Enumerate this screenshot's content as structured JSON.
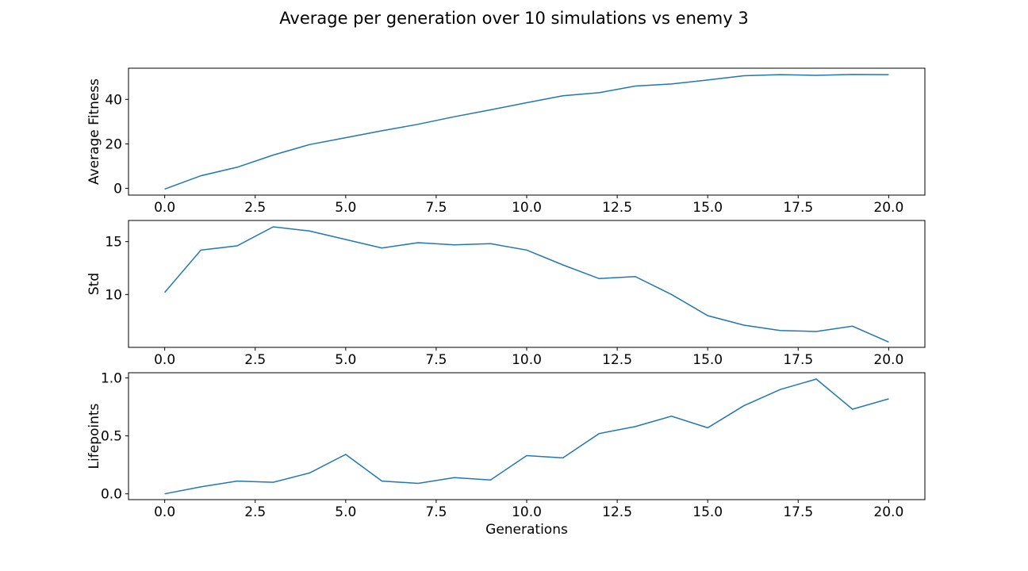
{
  "chart_data": [
    {
      "type": "line",
      "title": "Average per generation over 10 simulations vs enemy 3",
      "xlabel": "",
      "ylabel": "Average Fitness",
      "xlim": [
        -1.0,
        21.0
      ],
      "ylim": [
        -3,
        54
      ],
      "xticks": [
        "0.0",
        "2.5",
        "5.0",
        "7.5",
        "10.0",
        "12.5",
        "15.0",
        "17.5",
        "20.0"
      ],
      "yticks": [
        "0",
        "20",
        "40"
      ],
      "color": "#1f77b4",
      "x": [
        0,
        1,
        2,
        3,
        4,
        5,
        6,
        7,
        8,
        9,
        10,
        11,
        12,
        13,
        14,
        15,
        16,
        17,
        18,
        19,
        20
      ],
      "y": [
        -0.3,
        5.7,
        9.5,
        15.0,
        19.7,
        22.8,
        25.9,
        28.8,
        32.2,
        35.3,
        38.5,
        41.6,
        43.0,
        46.0,
        46.9,
        48.7,
        50.6,
        51.1,
        50.8,
        51.2,
        51.1
      ]
    },
    {
      "type": "line",
      "xlabel": "",
      "ylabel": "Std",
      "xlim": [
        -1.0,
        21.0
      ],
      "ylim": [
        5.0,
        17.0
      ],
      "xticks": [
        "0.0",
        "2.5",
        "5.0",
        "7.5",
        "10.0",
        "12.5",
        "15.0",
        "17.5",
        "20.0"
      ],
      "yticks": [
        "10",
        "15"
      ],
      "color": "#1f77b4",
      "x": [
        0,
        1,
        2,
        3,
        4,
        5,
        6,
        7,
        8,
        9,
        10,
        11,
        12,
        13,
        14,
        15,
        16,
        17,
        18,
        19,
        20
      ],
      "y": [
        10.2,
        14.2,
        14.6,
        16.4,
        16.0,
        15.2,
        14.4,
        14.9,
        14.7,
        14.8,
        14.2,
        12.8,
        11.5,
        11.7,
        10.0,
        8.0,
        7.1,
        6.6,
        6.5,
        7.0,
        5.5
      ]
    },
    {
      "type": "line",
      "xlabel": "Generations",
      "ylabel": "Lifepoints",
      "xlim": [
        -1.0,
        21.0
      ],
      "ylim": [
        -0.05,
        1.045
      ],
      "xticks": [
        "0.0",
        "2.5",
        "5.0",
        "7.5",
        "10.0",
        "12.5",
        "15.0",
        "17.5",
        "20.0"
      ],
      "yticks": [
        "0.0",
        "0.5",
        "1.0"
      ],
      "color": "#1f77b4",
      "x": [
        0,
        1,
        2,
        3,
        4,
        5,
        6,
        7,
        8,
        9,
        10,
        11,
        12,
        13,
        14,
        15,
        16,
        17,
        18,
        19,
        20
      ],
      "y": [
        0.0,
        0.06,
        0.11,
        0.1,
        0.18,
        0.34,
        0.11,
        0.09,
        0.14,
        0.12,
        0.33,
        0.31,
        0.52,
        0.58,
        0.67,
        0.57,
        0.76,
        0.9,
        0.99,
        0.73,
        0.82
      ]
    }
  ]
}
